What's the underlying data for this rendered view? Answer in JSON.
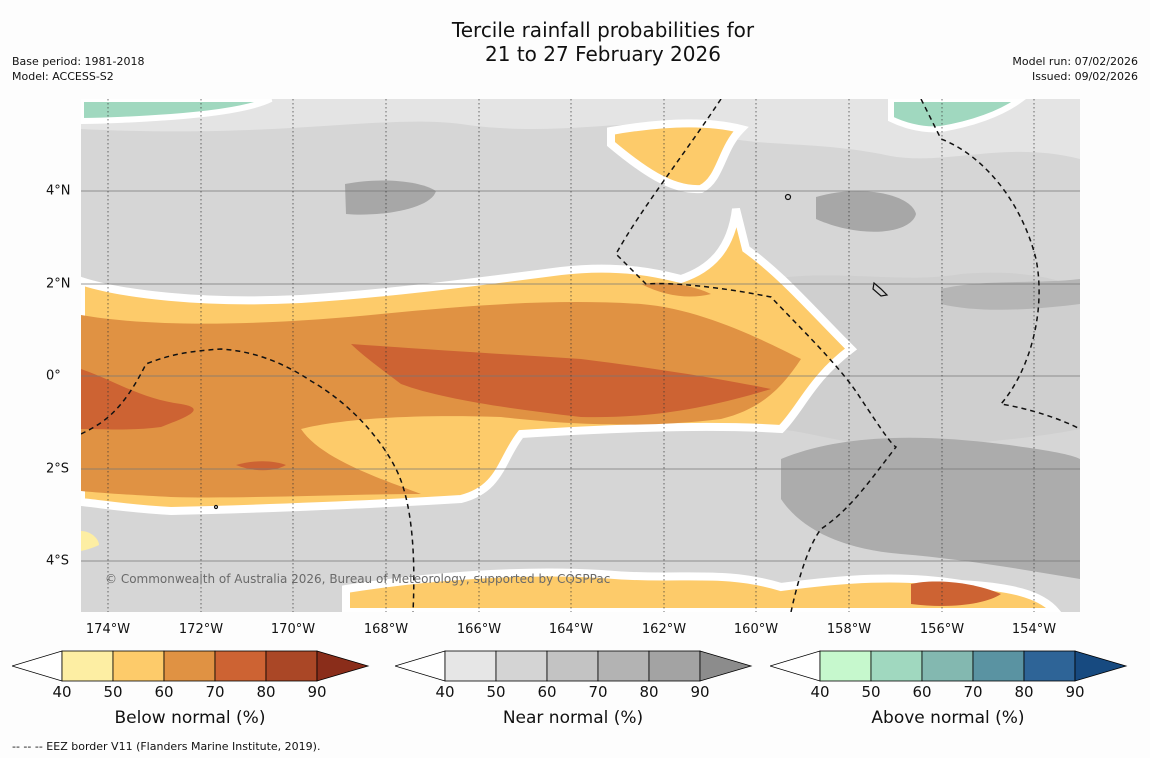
{
  "title": {
    "line1": "Tercile rainfall probabilities for",
    "line2": "21 to 27 February 2026"
  },
  "meta_left": {
    "base_period": "Base period: 1981-2018",
    "model": "Model: ACCESS-S2"
  },
  "meta_right": {
    "model_run": "Model run: 07/02/2026",
    "issued": "Issued: 09/02/2026"
  },
  "map": {
    "longitude_ticks": [
      "174°W",
      "172°W",
      "170°W",
      "168°W",
      "166°W",
      "164°W",
      "162°W",
      "160°W",
      "158°W",
      "156°W",
      "154°W"
    ],
    "latitude_ticks": [
      "4°N",
      "2°N",
      "0°",
      "2°S",
      "4°S"
    ],
    "copyright": "© Commonwealth of Australia 2026, Bureau of Meteorology, supported by COSPPac"
  },
  "colorbars": [
    {
      "label": "Below normal (%)",
      "ticks": [
        "40",
        "50",
        "60",
        "70",
        "80",
        "90"
      ],
      "colors": [
        "#fdeea3",
        "#fdcb6a",
        "#e09243",
        "#cd6333",
        "#aa4726",
        "#8a2d1a"
      ]
    },
    {
      "label": "Near normal (%)",
      "ticks": [
        "40",
        "50",
        "60",
        "70",
        "80",
        "90"
      ],
      "colors": [
        "#e6e6e6",
        "#d4d4d4",
        "#c3c3c3",
        "#b3b3b3",
        "#a3a3a3",
        "#8c8c8c"
      ]
    },
    {
      "label": "Above normal (%)",
      "ticks": [
        "40",
        "50",
        "60",
        "70",
        "80",
        "90"
      ],
      "colors": [
        "#c6f8cd",
        "#a0d8bf",
        "#83b8b0",
        "#5a93a2",
        "#2e6497",
        "#174a80"
      ]
    }
  ],
  "footnote": "--  --  -- EEZ border V11 (Flanders Marine Institute, 2019)."
}
